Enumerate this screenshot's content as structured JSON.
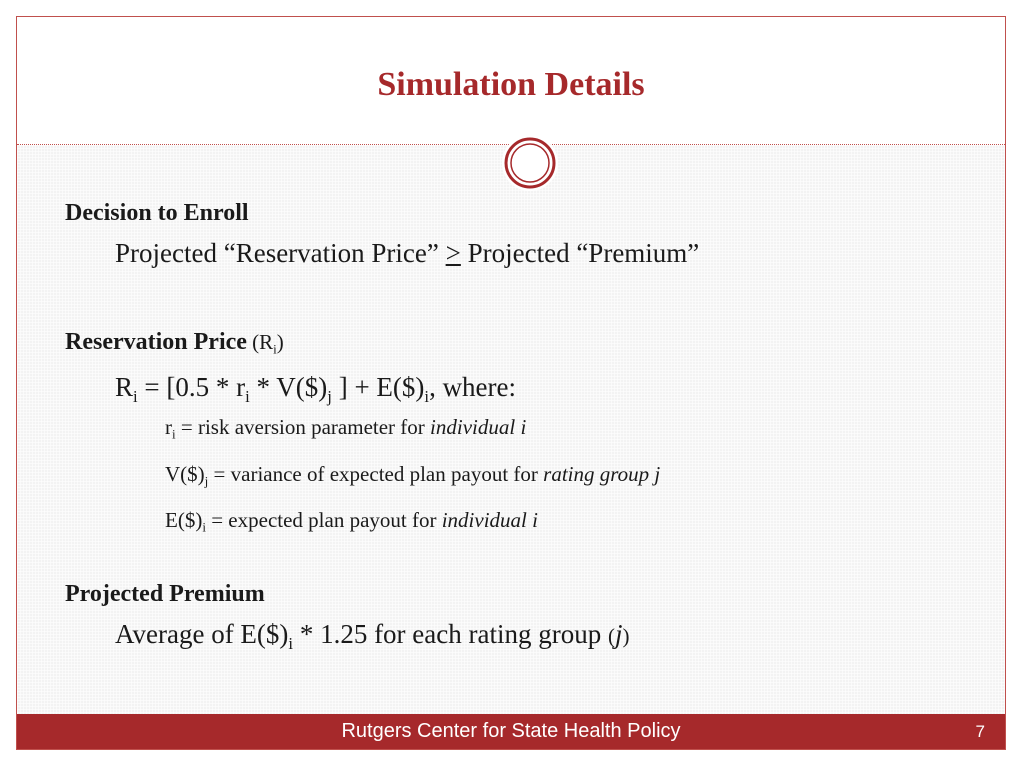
{
  "slide": {
    "title": "Simulation Details",
    "footer": "Rutgers Center for State Health Policy",
    "page_number": "7"
  },
  "sections": {
    "decision": {
      "heading": "Decision to Enroll",
      "lhs": "Projected “Reservation Price” ",
      "op": ">",
      "rhs": " Projected “Premium”"
    },
    "reservation": {
      "heading": "Reservation Price",
      "symbol_open": " (R",
      "symbol_sub": "i",
      "symbol_close": ")",
      "formula": {
        "p1": "R",
        "s1": "i",
        "p2": " = [0.5 * r",
        "s2": "i",
        "p3": " * V($)",
        "s3": "j",
        "p4": " ] +  E($)",
        "s4": "i",
        "p5": ", where:"
      },
      "definitions": [
        {
          "sym": "r",
          "sub": "i",
          "text": " = risk aversion parameter for ",
          "em": "individual i"
        },
        {
          "sym": "V($)",
          "sub": "j",
          "text": " = variance of expected plan payout for ",
          "em": "rating group j"
        },
        {
          "sym": "E($)",
          "sub": "i",
          "text": " = expected plan payout for ",
          "em": "individual i"
        }
      ]
    },
    "premium": {
      "heading": "Projected Premium",
      "p1": "Average of E($)",
      "s1": "i",
      "p2": " * 1.25 for each rating group ",
      "paren_open": "(",
      "em": "j",
      "paren_close": ")"
    }
  },
  "colors": {
    "accent": "#a6292b",
    "border": "#c0504d",
    "body_bg": "#f3f3f3"
  }
}
